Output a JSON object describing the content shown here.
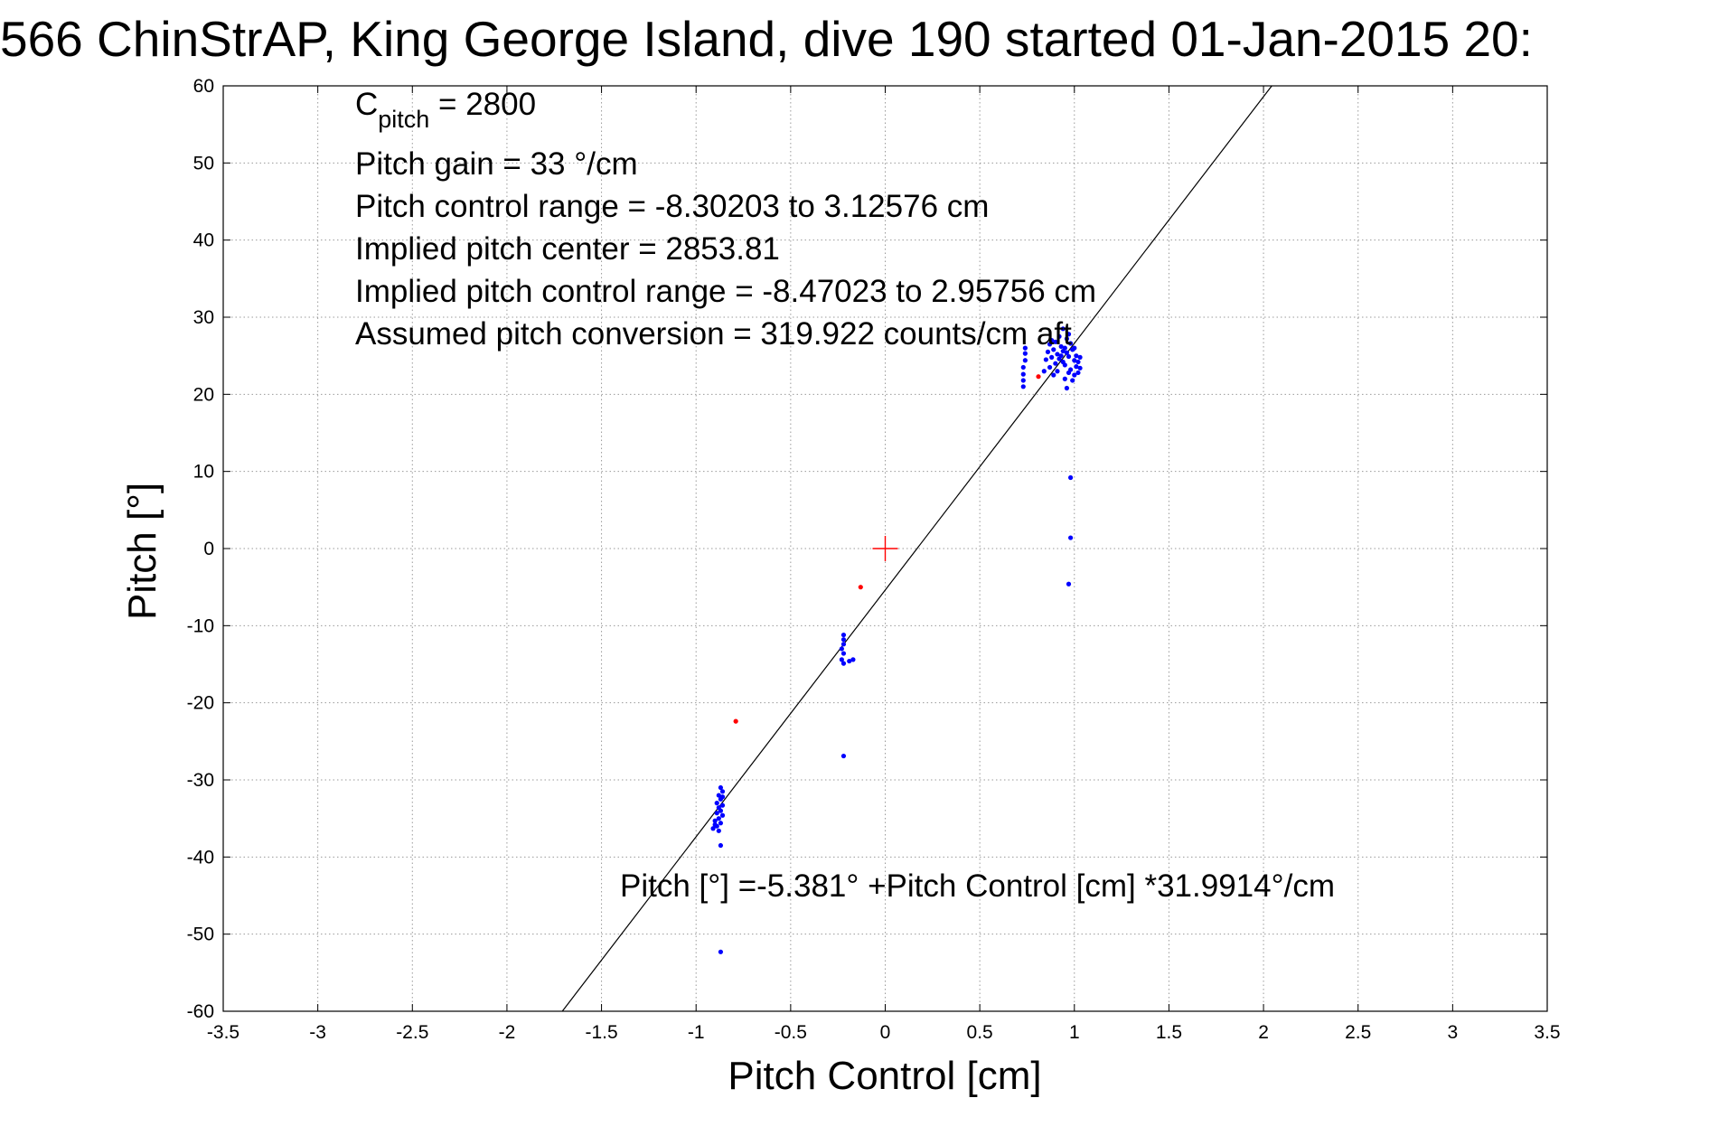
{
  "chart_data": {
    "type": "scatter",
    "title": "566 ChinStrAP, King George Island, dive 190 started 01-Jan-2015 20:",
    "xlabel": "Pitch Control [cm]",
    "ylabel": "Pitch [°]",
    "xlim": [
      -3.5,
      3.5
    ],
    "ylim": [
      -60,
      60
    ],
    "grid": true,
    "xticks": [
      -3.5,
      -3,
      -2.5,
      -2,
      -1.5,
      -1,
      -0.5,
      0,
      0.5,
      1,
      1.5,
      2,
      2.5,
      3,
      3.5
    ],
    "xtick_labels": [
      "-3.5",
      "-3",
      "-2.5",
      "-2",
      "-1.5",
      "-1",
      "-0.5",
      "0",
      "0.5",
      "1",
      "1.5",
      "2",
      "2.5",
      "3",
      "3.5"
    ],
    "yticks": [
      60,
      50,
      40,
      30,
      20,
      10,
      0,
      -10,
      -20,
      -30,
      -40,
      -50,
      -60
    ],
    "ytick_labels": [
      "60",
      "50",
      "40",
      "30",
      "20",
      "10",
      "0",
      "-10",
      "-20",
      "-30",
      "-40",
      "-50",
      "-60"
    ],
    "annotations": {
      "cpitch_main": "C",
      "cpitch_sub": "pitch",
      "cpitch_value": " = 2800",
      "pitch_gain": "Pitch gain = 33 °/cm",
      "control_range": "Pitch control range = -8.30203 to 3.12576 cm",
      "implied_center": "Implied pitch center = 2853.81",
      "implied_range": "Implied pitch control range = -8.47023 to 2.95756 cm",
      "conversion": "Assumed pitch conversion = 319.922 counts/cm aft",
      "fit_equation": "Pitch [°] =-5.381° +Pitch Control [cm] *31.9914°/cm"
    },
    "fit_line": {
      "intercept": -5.381,
      "slope": 31.9914
    },
    "center_marker": {
      "x": 0,
      "y": 0,
      "color": "#ff0000"
    },
    "series": [
      {
        "color": "#0000ff",
        "points": [
          [
            0.73,
            21.0
          ],
          [
            0.73,
            21.8
          ],
          [
            0.73,
            22.6
          ],
          [
            0.73,
            23.5
          ],
          [
            0.74,
            24.4
          ],
          [
            0.74,
            25.3
          ],
          [
            0.74,
            26.0
          ],
          [
            0.84,
            23.0
          ],
          [
            0.85,
            24.5
          ],
          [
            0.86,
            25.5
          ],
          [
            0.87,
            26.5
          ],
          [
            0.87,
            23.5
          ],
          [
            0.88,
            24.8
          ],
          [
            0.88,
            27.0
          ],
          [
            0.89,
            22.5
          ],
          [
            0.89,
            25.8
          ],
          [
            0.9,
            24.0
          ],
          [
            0.9,
            26.8
          ],
          [
            0.91,
            25.2
          ],
          [
            0.91,
            23.0
          ],
          [
            0.92,
            27.5
          ],
          [
            0.92,
            24.6
          ],
          [
            0.93,
            26.2
          ],
          [
            0.93,
            25.0
          ],
          [
            0.94,
            28.5
          ],
          [
            0.94,
            24.2
          ],
          [
            0.95,
            26.0
          ],
          [
            0.95,
            23.8
          ],
          [
            0.96,
            27.2
          ],
          [
            0.96,
            25.4
          ],
          [
            0.97,
            22.8
          ],
          [
            0.97,
            24.9
          ],
          [
            0.98,
            26.6
          ],
          [
            0.98,
            23.2
          ],
          [
            0.99,
            25.8
          ],
          [
            0.99,
            21.8
          ],
          [
            1.0,
            24.4
          ],
          [
            1.0,
            22.5
          ],
          [
            1.01,
            25.0
          ],
          [
            1.01,
            23.6
          ],
          [
            1.02,
            24.2
          ],
          [
            1.02,
            22.8
          ],
          [
            1.03,
            23.4
          ],
          [
            1.03,
            24.8
          ],
          [
            0.96,
            20.8
          ],
          [
            0.95,
            22.0
          ],
          [
            1.0,
            26.0
          ],
          [
            0.94,
            25.6
          ],
          [
            0.97,
            27.8
          ],
          [
            0.98,
            9.2
          ],
          [
            0.98,
            1.4
          ],
          [
            0.97,
            -4.6
          ],
          [
            -0.22,
            -11.2
          ],
          [
            -0.22,
            -11.8
          ],
          [
            -0.22,
            -12.4
          ],
          [
            -0.23,
            -13.0
          ],
          [
            -0.22,
            -13.6
          ],
          [
            -0.23,
            -14.4
          ],
          [
            -0.19,
            -14.6
          ],
          [
            -0.22,
            -14.9
          ],
          [
            -0.17,
            -14.4
          ],
          [
            -0.22,
            -26.9
          ],
          [
            -0.87,
            -31.0
          ],
          [
            -0.86,
            -31.5
          ],
          [
            -0.88,
            -32.0
          ],
          [
            -0.87,
            -32.5
          ],
          [
            -0.89,
            -33.0
          ],
          [
            -0.86,
            -33.3
          ],
          [
            -0.88,
            -33.6
          ],
          [
            -0.87,
            -34.0
          ],
          [
            -0.89,
            -34.3
          ],
          [
            -0.86,
            -34.6
          ],
          [
            -0.88,
            -35.0
          ],
          [
            -0.9,
            -35.3
          ],
          [
            -0.87,
            -35.6
          ],
          [
            -0.89,
            -36.0
          ],
          [
            -0.91,
            -36.3
          ],
          [
            -0.88,
            -36.6
          ],
          [
            -0.9,
            -35.8
          ],
          [
            -0.86,
            -32.2
          ],
          [
            -0.87,
            -38.5
          ],
          [
            -0.87,
            -52.3
          ]
        ]
      },
      {
        "color": "#ff0000",
        "points": [
          [
            0.81,
            22.3
          ],
          [
            -0.13,
            -5.0
          ],
          [
            -0.79,
            -22.4
          ]
        ]
      }
    ]
  }
}
